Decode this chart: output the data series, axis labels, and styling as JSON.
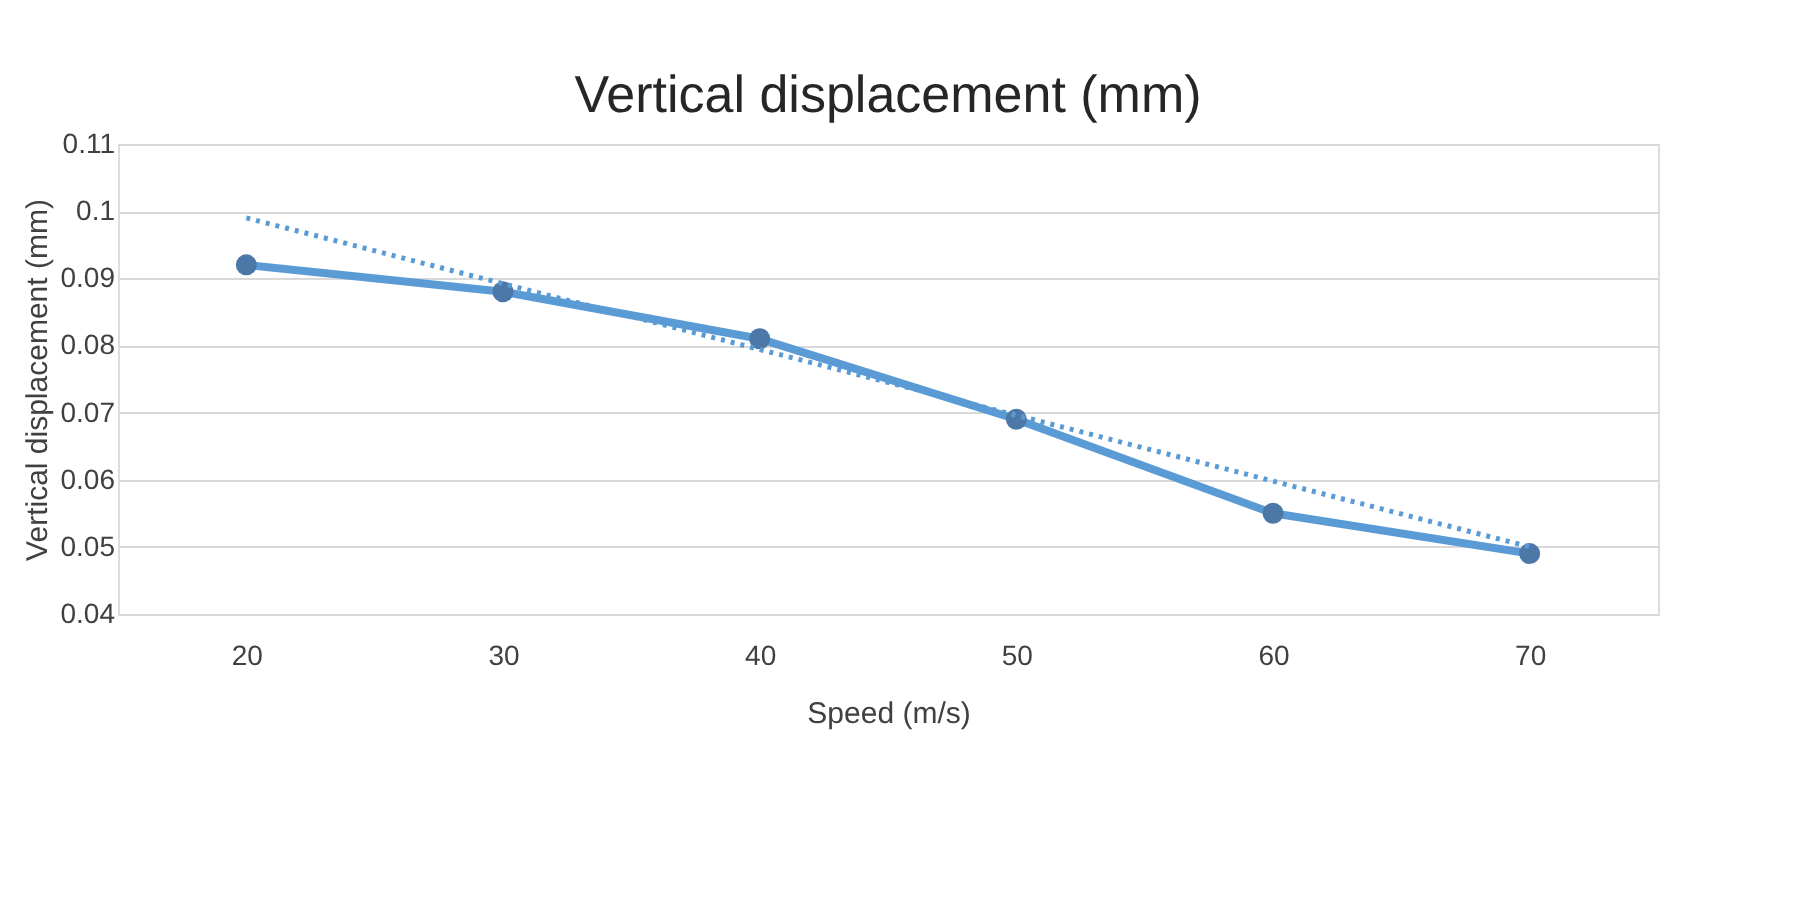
{
  "chart_data": {
    "type": "line",
    "title": "Vertical displacement (mm)",
    "xlabel": "Speed (m/s)",
    "ylabel": "Vertical displacement (mm)",
    "categories": [
      "20",
      "30",
      "40",
      "50",
      "60",
      "70"
    ],
    "series": [
      {
        "color": "#5b9bd5",
        "values": [
          0.092,
          0.088,
          0.081,
          0.069,
          0.055,
          0.049
        ],
        "marker": "circle",
        "line_style": "solid"
      },
      {
        "color": "#5b9bd5",
        "values": [
          0.099,
          0.0892,
          0.0794,
          0.0696,
          0.0598,
          0.05
        ],
        "marker": "none",
        "line_style": "dotted"
      }
    ],
    "ylim": [
      0.04,
      0.11
    ],
    "yticks": [
      0.04,
      0.05,
      0.06,
      0.07,
      0.08,
      0.09,
      0.1,
      0.11
    ],
    "grid": "y"
  }
}
